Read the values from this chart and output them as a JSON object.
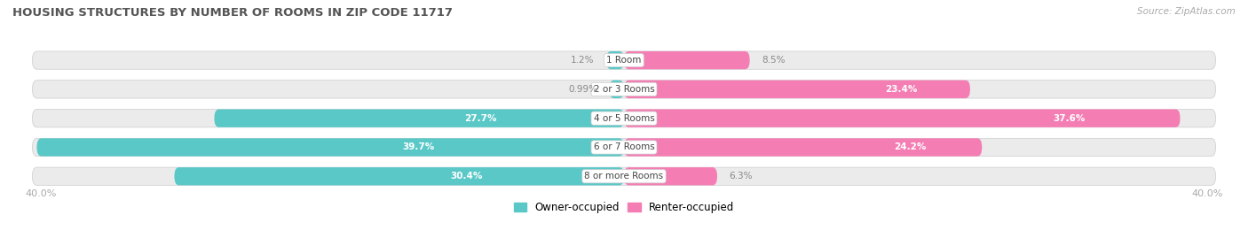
{
  "title": "HOUSING STRUCTURES BY NUMBER OF ROOMS IN ZIP CODE 11717",
  "source": "Source: ZipAtlas.com",
  "categories": [
    "1 Room",
    "2 or 3 Rooms",
    "4 or 5 Rooms",
    "6 or 7 Rooms",
    "8 or more Rooms"
  ],
  "owner_values": [
    1.2,
    0.99,
    27.7,
    39.7,
    30.4
  ],
  "renter_values": [
    8.5,
    23.4,
    37.6,
    24.2,
    6.3
  ],
  "axis_max": 40.0,
  "owner_color": "#5BC8C8",
  "renter_color": "#F47EB4",
  "bg_color": "#ffffff",
  "bar_bg_color": "#ebebeb",
  "title_color": "#555555",
  "axis_label_color": "#aaaaaa",
  "source_color": "#aaaaaa",
  "legend_owner": "Owner-occupied",
  "legend_renter": "Renter-occupied"
}
